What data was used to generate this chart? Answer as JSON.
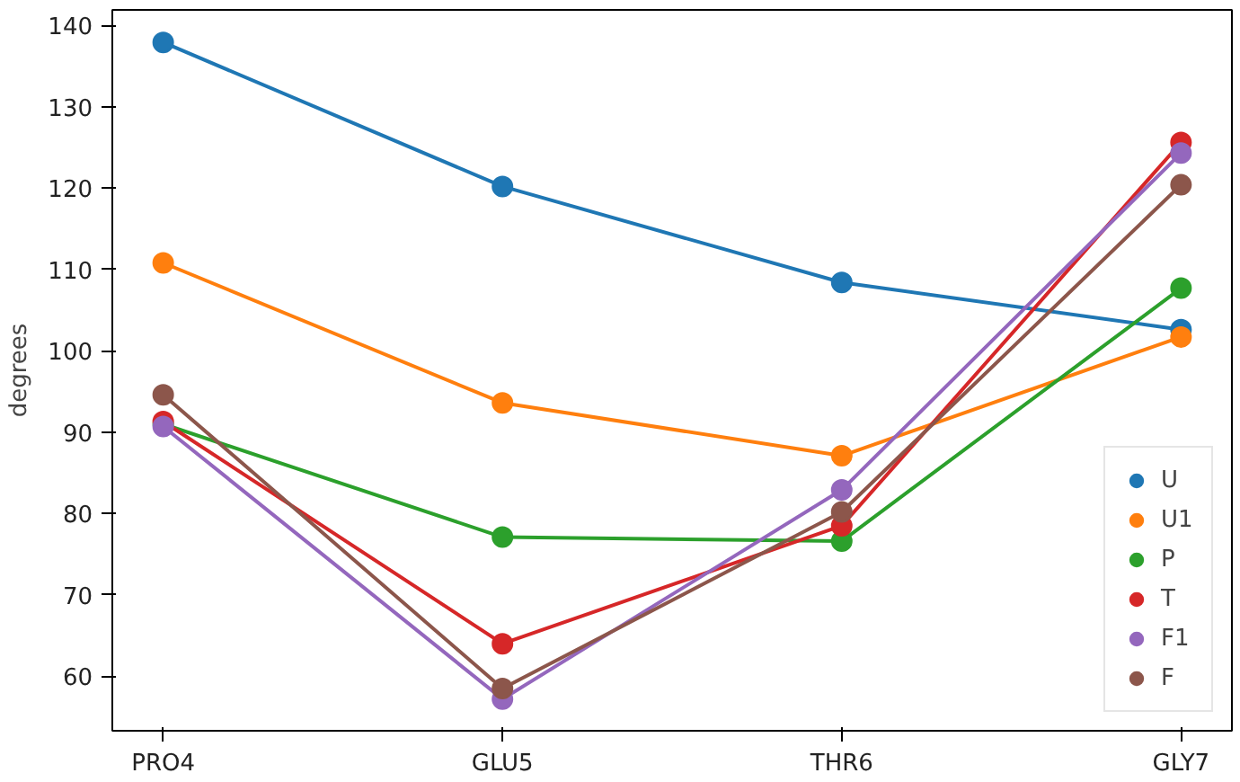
{
  "chart_data": {
    "type": "line",
    "ylabel": "degrees",
    "categories": [
      "PRO4",
      "GLU5",
      "THR6",
      "GLY7"
    ],
    "series": [
      {
        "name": "U",
        "color": "#1f77b4",
        "values": [
          137.9,
          120.2,
          108.4,
          102.6
        ]
      },
      {
        "name": "U1",
        "color": "#ff7f0e",
        "values": [
          110.8,
          93.6,
          87.1,
          101.7
        ]
      },
      {
        "name": "P",
        "color": "#2ca02c",
        "values": [
          91.0,
          77.1,
          76.6,
          107.7
        ]
      },
      {
        "name": "T",
        "color": "#d62728",
        "values": [
          91.3,
          64.0,
          78.5,
          125.6
        ]
      },
      {
        "name": "F1",
        "color": "#9467bd",
        "values": [
          90.7,
          57.2,
          82.9,
          124.3
        ]
      },
      {
        "name": "F",
        "color": "#8c564b",
        "values": [
          94.6,
          58.5,
          80.2,
          120.4
        ]
      }
    ],
    "ylim": [
      53.3,
      141.9
    ],
    "yticks": [
      60,
      70,
      80,
      90,
      100,
      110,
      120,
      130,
      140
    ],
    "grid": false,
    "legend": "bottom right",
    "marker": "circle",
    "line_style": "solid"
  }
}
